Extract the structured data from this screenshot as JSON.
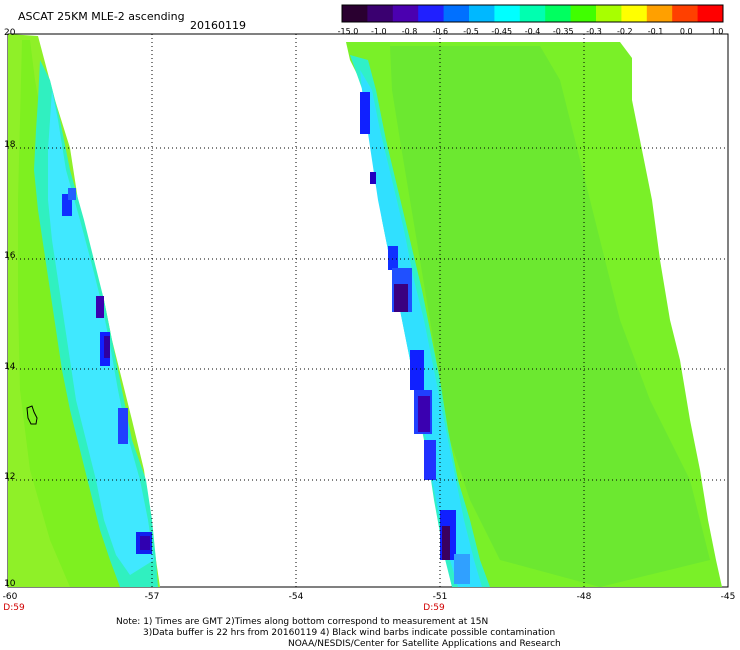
{
  "header": {
    "title": "ASCAT 25KM MLE-2 ascending",
    "date": "20160119"
  },
  "colorbar": {
    "labels": [
      "-15.0",
      "-1.0",
      "-0.8",
      "-0.6",
      "-0.5",
      "-0.45",
      "-0.4",
      "-0.35",
      "-0.3",
      "-0.2",
      "-0.1",
      "0.0",
      "1.0"
    ],
    "colors": [
      "#2a0030",
      "#3a0070",
      "#4b00b0",
      "#2020ff",
      "#0070ff",
      "#00b8ff",
      "#00ffff",
      "#00ffb0",
      "#00ff60",
      "#40ff00",
      "#a8ff00",
      "#ffff00",
      "#ffa000",
      "#ff4000",
      "#ff0000"
    ]
  },
  "map": {
    "x_ticks": [
      "-60",
      "-57",
      "-54",
      "-51",
      "-48",
      "-45"
    ],
    "y_ticks": [
      "20",
      "18",
      "16",
      "14",
      "12",
      "10"
    ],
    "time_labels": [
      "D:59",
      "D:59"
    ]
  },
  "notes": {
    "line1": "Note: 1) Times are GMT 2)Times along bottom correspond to measurement at 15N",
    "line2": "3)Data buffer is 22 hrs from 20160119 4) Black wind barbs indicate possible contamination",
    "line3": "NOAA/NESDIS/Center for Satellite Applications and Research"
  }
}
